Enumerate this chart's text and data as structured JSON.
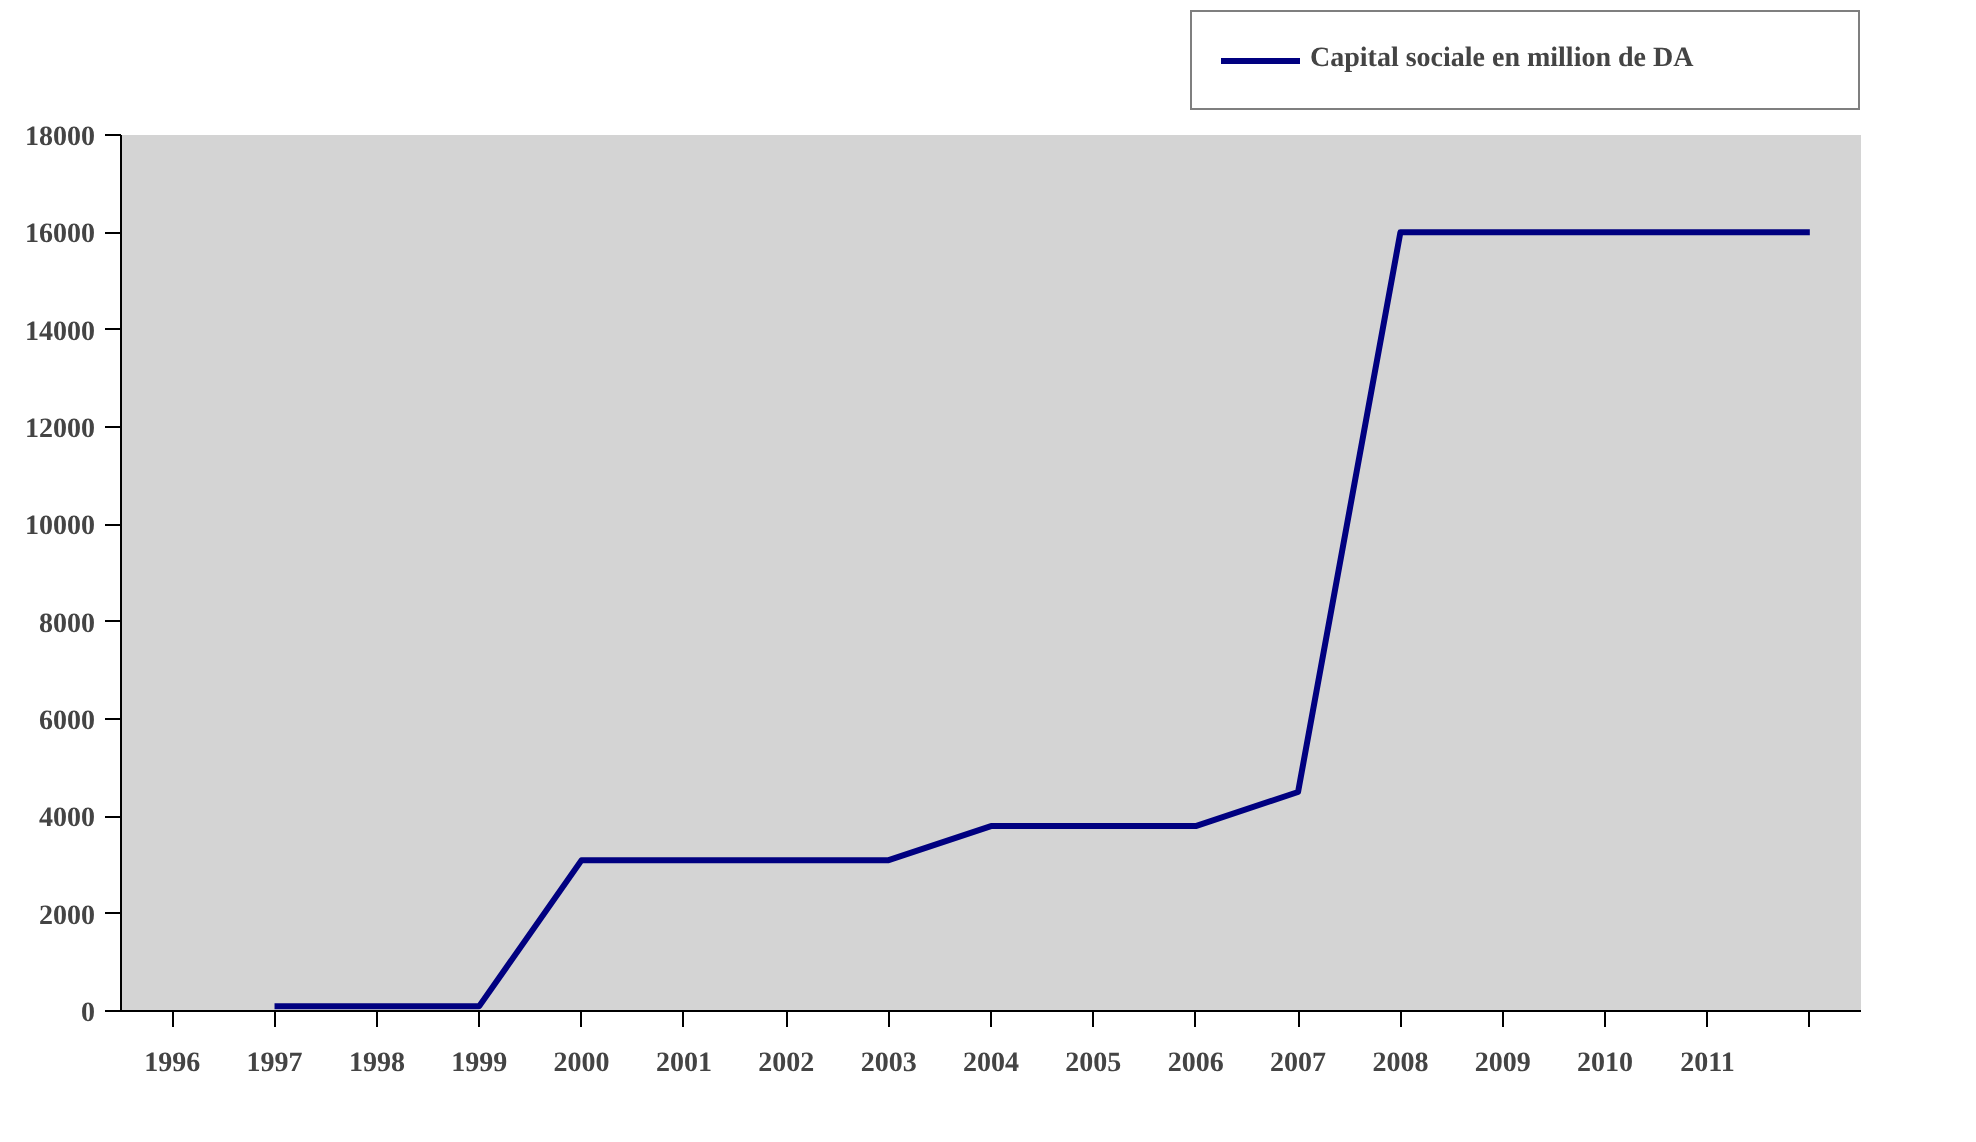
{
  "chart_data": {
    "type": "line",
    "categories": [
      "1996",
      "1997",
      "1998",
      "1999",
      "2000",
      "2001",
      "2002",
      "2003",
      "2004",
      "2005",
      "2006",
      "2007",
      "2008",
      "2009",
      "2010",
      "2011",
      null
    ],
    "series": [
      {
        "name": "Capital sociale en million de DA",
        "color": "#000080",
        "values": [
          null,
          100,
          100,
          100,
          3100,
          3100,
          3100,
          3100,
          3800,
          3800,
          3800,
          4500,
          16000,
          16000,
          16000,
          16000,
          16000
        ]
      }
    ],
    "ylim": [
      0,
      18000
    ],
    "yticks": [
      0,
      2000,
      4000,
      6000,
      8000,
      10000,
      12000,
      14000,
      16000,
      18000
    ],
    "grid": false,
    "legend": "top right",
    "marker": "none",
    "line_style": "solid"
  }
}
